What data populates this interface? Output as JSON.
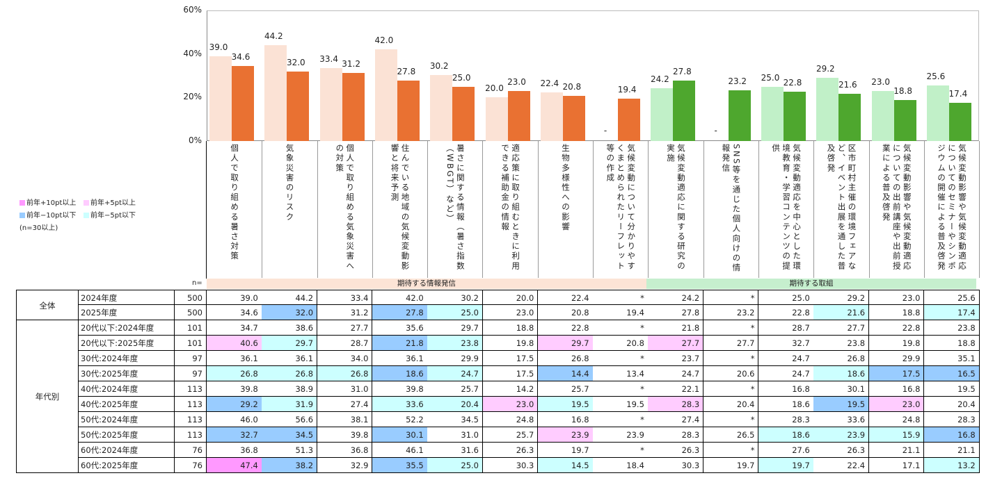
{
  "chart_data": {
    "type": "bar",
    "ylim": [
      0,
      60
    ],
    "yticks": [
      "0%",
      "20%",
      "40%",
      "60%"
    ],
    "grid": false,
    "categories": [
      "個人で取り組める暑さ対策",
      "気象災害のリスク",
      "個人で取り組める気象災害への対策",
      "住んでいる地域の気候変動影響と将来予測",
      "暑さに関する情報（暑さ指数（WBGT）など）",
      "適応策に取り組むときに利用できる補助金の情報",
      "生物多様性への影響",
      "気候変動について分かりやすくまとめられたリーフレット等の作成",
      "気候変動適応に関する研究の実施",
      "SNS等を通じた個人向けの情報発信",
      "気候変動適応を中心とした環境教育・学習コンテンツの提供",
      "区市町村主催の環境フェアなど、イベント出展を通した普及啓発",
      "気候変動影響や気候変動適応についての出前講座や出前授業による普及啓発",
      "気候変動影響や気候変動適応についてのセミナーやシンポジウムの開催による普及啓発"
    ],
    "series": [
      {
        "values": [
          39.0,
          44.2,
          33.4,
          42.0,
          30.2,
          20.0,
          22.4,
          null,
          24.2,
          null,
          25.0,
          29.2,
          23.0,
          25.6
        ]
      },
      {
        "values": [
          34.6,
          32.0,
          31.2,
          27.8,
          25.0,
          23.0,
          20.8,
          19.4,
          27.8,
          23.2,
          22.8,
          21.6,
          18.8,
          17.4
        ]
      }
    ],
    "missing_label": "-",
    "group_colors": {
      "info": {
        "light": "#FBE2D5",
        "dark": "#E97132"
      },
      "action": {
        "light": "#C1F0C8",
        "dark": "#4EA72E"
      }
    },
    "category_groups": [
      "info",
      "info",
      "info",
      "info",
      "info",
      "info",
      "info",
      "info",
      "action",
      "action",
      "action",
      "action",
      "action",
      "action"
    ]
  },
  "legend": {
    "items": [
      {
        "label": "前年+10pt以上",
        "color": "#FF99FF"
      },
      {
        "label": "前年+5pt以上",
        "color": "#FFCCFF"
      },
      {
        "label": "前年−10pt以下",
        "color": "#99CCFF"
      },
      {
        "label": "前年−5pt以下",
        "color": "#CCFFFF"
      }
    ],
    "note": "(n=30以上)"
  },
  "table": {
    "n_header": "n=",
    "bands": [
      {
        "label": "期待する情報発信",
        "color": "#FCE4D6"
      },
      {
        "label": "期待する取組",
        "color": "#C6EFCE"
      }
    ],
    "highlight_colors": {
      "p2": "#FF99FF",
      "p1": "#FFCCFF",
      "b2": "#99CCFF",
      "b1": "#CCFFFF"
    },
    "groups": [
      {
        "label": "全体",
        "rows": 2
      },
      {
        "label": "年代別",
        "rows": 10
      }
    ],
    "rows": [
      {
        "label": "2024年度",
        "n": "500",
        "values": [
          "39.0",
          "44.2",
          "33.4",
          "42.0",
          "30.2",
          "20.0",
          "22.4",
          "*",
          "24.2",
          "*",
          "25.0",
          "29.2",
          "23.0",
          "25.6"
        ],
        "hl": [
          "",
          "",
          "",
          "",
          "",
          "",
          "",
          "",
          "",
          "",
          "",
          "",
          "",
          ""
        ]
      },
      {
        "label": "2025年度",
        "n": "500",
        "values": [
          "34.6",
          "32.0",
          "31.2",
          "27.8",
          "25.0",
          "23.0",
          "20.8",
          "19.4",
          "27.8",
          "23.2",
          "22.8",
          "21.6",
          "18.8",
          "17.4"
        ],
        "hl": [
          "",
          "b2",
          "",
          "b2",
          "b1",
          "",
          "",
          "",
          "",
          "",
          "",
          "b1",
          "",
          "b1"
        ]
      },
      {
        "label": "20代以下:2024年度",
        "n": "101",
        "values": [
          "34.7",
          "38.6",
          "27.7",
          "35.6",
          "29.7",
          "18.8",
          "22.8",
          "*",
          "21.8",
          "*",
          "28.7",
          "27.7",
          "22.8",
          "23.8"
        ],
        "hl": [
          "",
          "",
          "",
          "",
          "",
          "",
          "",
          "",
          "",
          "",
          "",
          "",
          "",
          ""
        ]
      },
      {
        "label": "20代以下:2025年度",
        "n": "101",
        "values": [
          "40.6",
          "29.7",
          "28.7",
          "21.8",
          "23.8",
          "19.8",
          "29.7",
          "20.8",
          "27.7",
          "27.7",
          "32.7",
          "23.8",
          "19.8",
          "18.8"
        ],
        "hl": [
          "p1",
          "b1",
          "",
          "b2",
          "b1",
          "",
          "p1",
          "",
          "p1",
          "",
          "",
          "",
          "",
          ""
        ]
      },
      {
        "label": "30代:2024年度",
        "n": "97",
        "values": [
          "36.1",
          "36.1",
          "34.0",
          "36.1",
          "29.9",
          "17.5",
          "26.8",
          "*",
          "23.7",
          "*",
          "24.7",
          "26.8",
          "29.9",
          "35.1"
        ],
        "hl": [
          "",
          "",
          "",
          "",
          "",
          "",
          "",
          "",
          "",
          "",
          "",
          "",
          "",
          ""
        ]
      },
      {
        "label": "30代:2025年度",
        "n": "97",
        "values": [
          "26.8",
          "26.8",
          "26.8",
          "18.6",
          "24.7",
          "17.5",
          "14.4",
          "13.4",
          "24.7",
          "20.6",
          "24.7",
          "18.6",
          "17.5",
          "16.5"
        ],
        "hl": [
          "b1",
          "b1",
          "b1",
          "b2",
          "b1",
          "",
          "b2",
          "",
          "",
          "",
          "",
          "b1",
          "b2",
          "b2"
        ]
      },
      {
        "label": "40代:2024年度",
        "n": "113",
        "values": [
          "39.8",
          "38.9",
          "31.0",
          "39.8",
          "25.7",
          "14.2",
          "25.7",
          "*",
          "22.1",
          "*",
          "16.8",
          "30.1",
          "16.8",
          "19.5"
        ],
        "hl": [
          "",
          "",
          "",
          "",
          "",
          "",
          "",
          "",
          "",
          "",
          "",
          "",
          "",
          ""
        ]
      },
      {
        "label": "40代:2025年度",
        "n": "113",
        "values": [
          "29.2",
          "31.9",
          "27.4",
          "33.6",
          "20.4",
          "23.0",
          "19.5",
          "19.5",
          "28.3",
          "20.4",
          "18.6",
          "19.5",
          "23.0",
          "20.4"
        ],
        "hl": [
          "b2",
          "b1",
          "",
          "b1",
          "b1",
          "p1",
          "b1",
          "",
          "p1",
          "",
          "",
          "b2",
          "p1",
          ""
        ]
      },
      {
        "label": "50代:2024年度",
        "n": "113",
        "values": [
          "46.0",
          "56.6",
          "38.1",
          "52.2",
          "34.5",
          "24.8",
          "16.8",
          "*",
          "27.4",
          "*",
          "28.3",
          "33.6",
          "24.8",
          "28.3"
        ],
        "hl": [
          "",
          "",
          "",
          "",
          "",
          "",
          "",
          "",
          "",
          "",
          "",
          "",
          "",
          ""
        ]
      },
      {
        "label": "50代:2025年度",
        "n": "113",
        "values": [
          "32.7",
          "34.5",
          "39.8",
          "30.1",
          "31.0",
          "25.7",
          "23.9",
          "23.9",
          "28.3",
          "26.5",
          "18.6",
          "23.9",
          "15.9",
          "16.8"
        ],
        "hl": [
          "b2",
          "b2",
          "",
          "b2",
          "",
          "",
          "p1",
          "",
          "",
          "",
          "b1",
          "b1",
          "b1",
          "b2"
        ]
      },
      {
        "label": "60代:2024年度",
        "n": "76",
        "values": [
          "36.8",
          "51.3",
          "36.8",
          "46.1",
          "31.6",
          "26.3",
          "19.7",
          "*",
          "26.3",
          "*",
          "27.6",
          "26.3",
          "21.1",
          "21.1"
        ],
        "hl": [
          "",
          "",
          "",
          "",
          "",
          "",
          "",
          "",
          "",
          "",
          "",
          "",
          "",
          ""
        ]
      },
      {
        "label": "60代:2025年度",
        "n": "76",
        "values": [
          "47.4",
          "38.2",
          "32.9",
          "35.5",
          "25.0",
          "30.3",
          "14.5",
          "18.4",
          "30.3",
          "19.7",
          "19.7",
          "22.4",
          "17.1",
          "13.2"
        ],
        "hl": [
          "p2",
          "b2",
          "",
          "b2",
          "b1",
          "",
          "b1",
          "",
          "",
          "",
          "b1",
          "",
          "",
          "b1"
        ]
      }
    ]
  }
}
